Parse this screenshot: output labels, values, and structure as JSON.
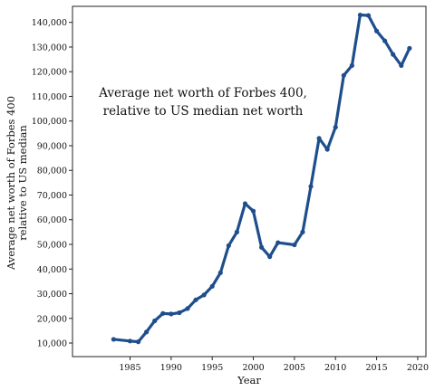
{
  "chart_data": {
    "type": "line",
    "title": "",
    "xlabel": "Year",
    "ylabel_lines": [
      "Average net worth of Forbes 400",
      "relative to US median"
    ],
    "annotation_lines": [
      "Average net worth of Forbes 400,",
      "relative to US median net worth"
    ],
    "xlim": [
      1978,
      2021
    ],
    "ylim": [
      4500,
      146500
    ],
    "x_ticks": [
      1985,
      1990,
      1995,
      2000,
      2005,
      2010,
      2015,
      2020
    ],
    "x_tick_labels": [
      "1985",
      "1990",
      "1995",
      "2000",
      "2005",
      "2010",
      "2015",
      "2020"
    ],
    "y_ticks": [
      10000,
      20000,
      30000,
      40000,
      50000,
      60000,
      70000,
      80000,
      90000,
      100000,
      110000,
      120000,
      130000,
      140000
    ],
    "y_tick_labels": [
      "10,000",
      "20,000",
      "30,000",
      "40,000",
      "50,000",
      "60,000",
      "70,000",
      "80,000",
      "90,000",
      "100,000",
      "110,000",
      "120,000",
      "130,000",
      "140,000"
    ],
    "grid": false,
    "line_color": "#1f4e8c",
    "series": [
      {
        "x": [
          1983,
          1985,
          1986,
          1987,
          1988,
          1989,
          1990,
          1991,
          1992,
          1993,
          1994,
          1995,
          1996,
          1997,
          1998,
          1999,
          2000,
          2001,
          2002,
          2003,
          2005,
          2006,
          2007,
          2008,
          2009,
          2010,
          2011,
          2012,
          2013,
          2014,
          2015,
          2016,
          2017,
          2018,
          2019
        ],
        "values": [
          11500,
          10800,
          10500,
          14500,
          19000,
          22000,
          21800,
          22300,
          24000,
          27500,
          29500,
          33000,
          38500,
          49500,
          55000,
          66500,
          63500,
          48800,
          45000,
          50700,
          49800,
          55000,
          73500,
          93000,
          88500,
          97500,
          118500,
          122500,
          143000,
          142800,
          136500,
          132500,
          127000,
          122500,
          129500
        ]
      }
    ]
  }
}
